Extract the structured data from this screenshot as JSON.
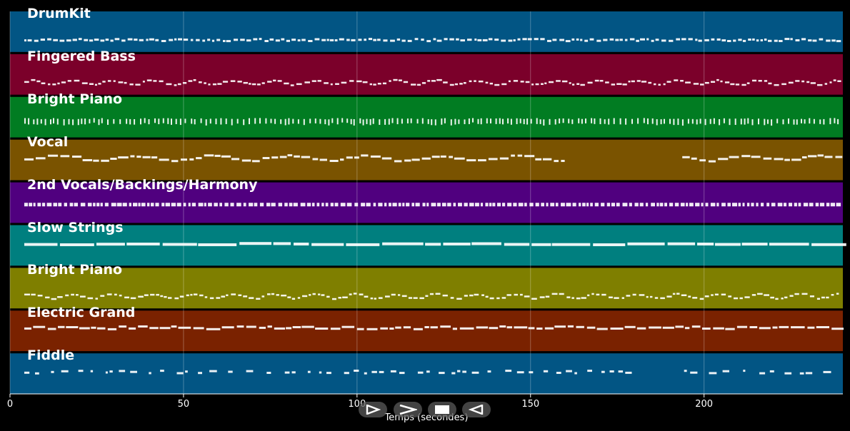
{
  "tracks": [
    {
      "name": "DrumKit",
      "color": "#025584",
      "pattern": "drum"
    },
    {
      "name": "Fingered Bass",
      "color": "#7b002a",
      "pattern": "wave"
    },
    {
      "name": "Bright Piano",
      "color": "#017c22",
      "pattern": "chords"
    },
    {
      "name": "Vocal",
      "color": "#7a5300",
      "pattern": "melody"
    },
    {
      "name": "2nd Vocals/Backings/Harmony",
      "color": "#50007f",
      "pattern": "dense"
    },
    {
      "name": "Slow Strings",
      "color": "#007f7f",
      "pattern": "long"
    },
    {
      "name": "Bright Piano",
      "color": "#7f7f00",
      "pattern": "wave"
    },
    {
      "name": "Electric Grand",
      "color": "#7a2200",
      "pattern": "grand"
    },
    {
      "name": "Fiddle",
      "color": "#025584",
      "pattern": "sparse"
    }
  ],
  "axis": {
    "title": "Temps (secondes)",
    "ticks": [
      "0",
      "50",
      "100",
      "150",
      "200"
    ],
    "tick_values": [
      0,
      50,
      100,
      150,
      200
    ],
    "range": [
      0,
      240
    ]
  },
  "controls": [
    {
      "name": "play-button",
      "icon": "play-icon"
    },
    {
      "name": "fast-forward-button",
      "icon": "fast-forward-icon"
    },
    {
      "name": "stop-button",
      "icon": "stop-icon"
    },
    {
      "name": "rewind-button",
      "icon": "rewind-icon"
    }
  ]
}
